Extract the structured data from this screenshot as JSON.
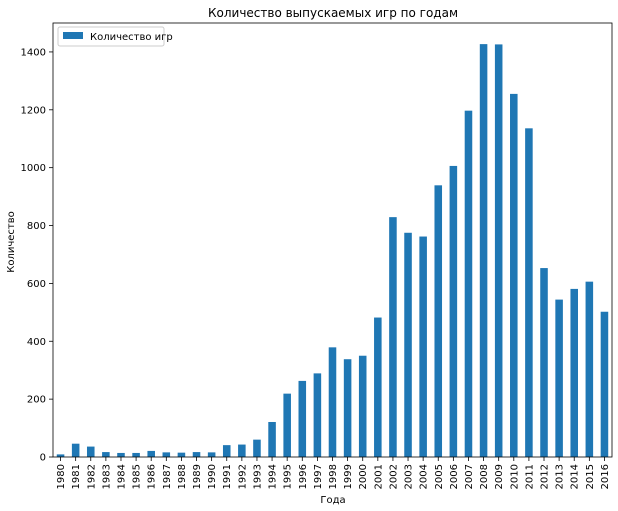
{
  "chart_data": {
    "type": "bar",
    "title": "Количество выпускаемых игр по годам",
    "xlabel": "Года",
    "ylabel": "Количество",
    "ylim": [
      0,
      1500
    ],
    "yticks": [
      "0",
      "200",
      "400",
      "600",
      "800",
      "1000",
      "1200",
      "1400"
    ],
    "grid": false,
    "legend_position": "top-left",
    "bar_color": "#1f77b4",
    "categories": [
      "1980",
      "1981",
      "1982",
      "1983",
      "1984",
      "1985",
      "1986",
      "1987",
      "1988",
      "1989",
      "1990",
      "1991",
      "1992",
      "1993",
      "1994",
      "1995",
      "1996",
      "1997",
      "1998",
      "1999",
      "2000",
      "2001",
      "2002",
      "2003",
      "2004",
      "2005",
      "2006",
      "2007",
      "2008",
      "2009",
      "2010",
      "2011",
      "2012",
      "2013",
      "2014",
      "2015",
      "2016"
    ],
    "series": [
      {
        "name": "Количество игр",
        "values": [
          9,
          46,
          36,
          17,
          14,
          14,
          21,
          16,
          15,
          17,
          16,
          41,
          43,
          60,
          121,
          219,
          263,
          289,
          379,
          338,
          350,
          482,
          829,
          775,
          762,
          939,
          1006,
          1197,
          1427,
          1426,
          1255,
          1136,
          653,
          544,
          581,
          606,
          502
        ]
      }
    ]
  }
}
